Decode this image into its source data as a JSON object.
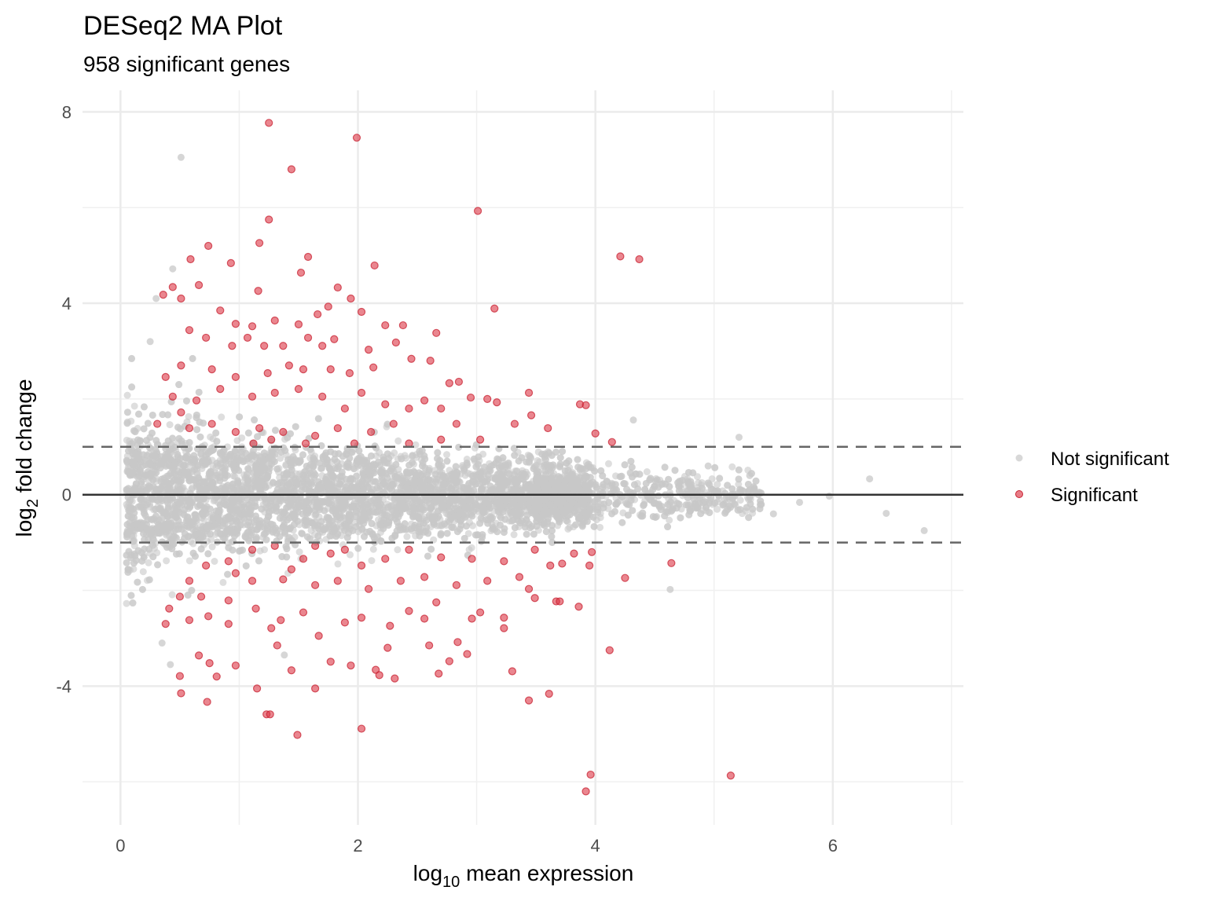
{
  "chart_data": {
    "type": "scatter",
    "title": "DESeq2 MA Plot",
    "subtitle": "958 significant genes",
    "xlabel": {
      "base": "log",
      "sub": "10",
      "rest": " mean expression"
    },
    "ylabel": {
      "base": "log",
      "sub": "2",
      "rest": " fold change"
    },
    "xlim": [
      -0.32,
      7.1
    ],
    "ylim": [
      -6.9,
      8.45
    ],
    "x_ticks": [
      0,
      2,
      4,
      6
    ],
    "x_minor": [
      1,
      3,
      5,
      7
    ],
    "y_ticks": [
      -4,
      0,
      4,
      8
    ],
    "y_minor": [
      -6,
      -2,
      2,
      6
    ],
    "x_tick_labels": [
      "0",
      "2",
      "4",
      "6"
    ],
    "y_tick_labels": [
      "-4",
      "0",
      "4",
      "8"
    ],
    "grid": true,
    "reference_lines": {
      "solid": [
        0
      ],
      "dashed": [
        -1,
        1
      ]
    },
    "legend": {
      "position": "right",
      "entries": [
        "Not significant",
        "Significant"
      ]
    },
    "colors": {
      "not_significant": "#c8c8c8",
      "significant": "#dc3545",
      "ref_line": "#333333",
      "dashed_line": "#666666",
      "grid": "#ebebeb"
    },
    "background_cloud": {
      "series": "Not significant",
      "n": 6500,
      "x_range": [
        0.05,
        5.4
      ],
      "sd_low_x": 0.95,
      "sd_high_x": 0.22,
      "seed": 42
    },
    "series": [
      {
        "name": "Not significant",
        "points": [
          [
            0.51,
            7.05
          ],
          [
            6.31,
            0.33
          ],
          [
            6.45,
            -0.39
          ],
          [
            6.77,
            -0.75
          ],
          [
            4.63,
            -1.98
          ],
          [
            5.97,
            -0.03
          ],
          [
            5.72,
            -0.16
          ],
          [
            5.21,
            1.2
          ],
          [
            4.32,
            1.56
          ],
          [
            0.44,
            4.72
          ],
          [
            0.3,
            4.1
          ],
          [
            0.35,
            -3.1
          ],
          [
            0.42,
            -3.55
          ],
          [
            1.38,
            -3.35
          ],
          [
            0.25,
            3.2
          ],
          [
            5.5,
            -0.4
          ],
          [
            5.3,
            0.4
          ],
          [
            4.95,
            0.6
          ],
          [
            5.1,
            -0.35
          ]
        ]
      },
      {
        "name": "Significant",
        "points": [
          [
            1.25,
            7.77
          ],
          [
            1.99,
            7.46
          ],
          [
            1.44,
            6.8
          ],
          [
            3.01,
            5.93
          ],
          [
            1.25,
            5.75
          ],
          [
            1.17,
            5.26
          ],
          [
            0.74,
            5.2
          ],
          [
            1.58,
            4.97
          ],
          [
            4.21,
            4.98
          ],
          [
            4.37,
            4.92
          ],
          [
            0.59,
            4.92
          ],
          [
            0.93,
            4.84
          ],
          [
            2.14,
            4.79
          ],
          [
            1.52,
            4.64
          ],
          [
            1.83,
            4.33
          ],
          [
            1.94,
            4.1
          ],
          [
            3.15,
            3.89
          ],
          [
            1.16,
            4.26
          ],
          [
            0.44,
            4.34
          ],
          [
            0.66,
            4.38
          ],
          [
            1.75,
            3.93
          ],
          [
            1.66,
            3.77
          ],
          [
            2.03,
            3.82
          ],
          [
            2.23,
            3.54
          ],
          [
            2.38,
            3.54
          ],
          [
            2.66,
            3.38
          ],
          [
            2.32,
            3.18
          ],
          [
            2.09,
            3.03
          ],
          [
            2.45,
            2.84
          ],
          [
            2.61,
            2.8
          ],
          [
            2.13,
            2.66
          ],
          [
            2.77,
            2.33
          ],
          [
            2.85,
            2.36
          ],
          [
            2.95,
            2.03
          ],
          [
            3.09,
            2.0
          ],
          [
            3.17,
            1.93
          ],
          [
            3.44,
            2.13
          ],
          [
            3.46,
            1.66
          ],
          [
            3.6,
            1.39
          ],
          [
            3.87,
            1.89
          ],
          [
            3.92,
            1.87
          ],
          [
            4.0,
            1.28
          ],
          [
            4.14,
            1.1
          ],
          [
            3.32,
            1.48
          ],
          [
            1.5,
            3.56
          ],
          [
            1.3,
            3.64
          ],
          [
            1.11,
            3.52
          ],
          [
            0.97,
            3.57
          ],
          [
            0.84,
            3.85
          ],
          [
            0.51,
            4.1
          ],
          [
            0.36,
            4.18
          ],
          [
            0.58,
            3.44
          ],
          [
            0.72,
            3.28
          ],
          [
            0.94,
            3.11
          ],
          [
            1.07,
            3.28
          ],
          [
            1.21,
            3.11
          ],
          [
            1.37,
            3.11
          ],
          [
            1.58,
            3.28
          ],
          [
            1.7,
            3.11
          ],
          [
            1.8,
            3.25
          ],
          [
            1.42,
            2.7
          ],
          [
            1.54,
            2.62
          ],
          [
            1.77,
            2.62
          ],
          [
            1.93,
            2.54
          ],
          [
            1.24,
            2.54
          ],
          [
            0.97,
            2.46
          ],
          [
            0.77,
            2.62
          ],
          [
            0.51,
            2.7
          ],
          [
            0.38,
            2.46
          ],
          [
            0.44,
            2.05
          ],
          [
            0.64,
            1.97
          ],
          [
            0.84,
            2.21
          ],
          [
            1.11,
            2.05
          ],
          [
            1.3,
            2.13
          ],
          [
            1.5,
            2.21
          ],
          [
            1.7,
            2.05
          ],
          [
            1.89,
            1.8
          ],
          [
            2.03,
            2.13
          ],
          [
            2.23,
            1.89
          ],
          [
            2.43,
            1.8
          ],
          [
            2.56,
            1.97
          ],
          [
            2.7,
            1.8
          ],
          [
            2.3,
            1.48
          ],
          [
            2.11,
            1.31
          ],
          [
            1.83,
            1.39
          ],
          [
            1.64,
            1.23
          ],
          [
            1.37,
            1.31
          ],
          [
            1.17,
            1.39
          ],
          [
            0.97,
            1.31
          ],
          [
            0.77,
            1.48
          ],
          [
            0.58,
            1.39
          ],
          [
            1.27,
            1.15
          ],
          [
            1.56,
            1.07
          ],
          [
            1.97,
            1.07
          ],
          [
            2.43,
            1.07
          ],
          [
            2.7,
            1.15
          ],
          [
            3.03,
            1.15
          ],
          [
            2.83,
            1.48
          ],
          [
            1.12,
            1.07
          ],
          [
            0.51,
            1.72
          ],
          [
            0.31,
            1.48
          ],
          [
            3.96,
            -5.85
          ],
          [
            3.92,
            -6.2
          ],
          [
            5.14,
            -5.87
          ],
          [
            2.03,
            -4.89
          ],
          [
            1.49,
            -5.02
          ],
          [
            1.23,
            -4.59
          ],
          [
            1.26,
            -4.59
          ],
          [
            0.51,
            -4.15
          ],
          [
            0.73,
            -4.33
          ],
          [
            1.15,
            -4.05
          ],
          [
            1.64,
            -4.05
          ],
          [
            3.44,
            -4.3
          ],
          [
            3.61,
            -4.16
          ],
          [
            3.3,
            -3.69
          ],
          [
            4.12,
            -3.25
          ],
          [
            2.68,
            -3.74
          ],
          [
            2.31,
            -3.84
          ],
          [
            2.15,
            -3.66
          ],
          [
            2.18,
            -3.77
          ],
          [
            1.44,
            -3.67
          ],
          [
            1.77,
            -3.49
          ],
          [
            1.94,
            -3.57
          ],
          [
            0.97,
            -3.57
          ],
          [
            0.75,
            -3.52
          ],
          [
            0.81,
            -3.8
          ],
          [
            0.5,
            -3.79
          ],
          [
            0.66,
            -3.36
          ],
          [
            1.32,
            -3.15
          ],
          [
            2.25,
            -3.2
          ],
          [
            2.6,
            -3.15
          ],
          [
            2.77,
            -3.48
          ],
          [
            2.84,
            -3.08
          ],
          [
            2.92,
            -3.33
          ],
          [
            3.86,
            -2.34
          ],
          [
            4.64,
            -1.43
          ],
          [
            4.25,
            -1.74
          ],
          [
            3.67,
            -2.23
          ],
          [
            3.7,
            -2.23
          ],
          [
            3.44,
            -1.97
          ],
          [
            3.49,
            -2.16
          ],
          [
            3.23,
            -2.79
          ],
          [
            3.23,
            -2.57
          ],
          [
            2.96,
            -2.59
          ],
          [
            3.03,
            -2.46
          ],
          [
            2.66,
            -2.25
          ],
          [
            2.56,
            -2.59
          ],
          [
            2.43,
            -2.43
          ],
          [
            2.27,
            -2.74
          ],
          [
            2.03,
            -2.57
          ],
          [
            1.89,
            -2.67
          ],
          [
            1.67,
            -2.95
          ],
          [
            1.54,
            -2.46
          ],
          [
            1.35,
            -2.62
          ],
          [
            1.27,
            -2.79
          ],
          [
            1.14,
            -2.38
          ],
          [
            0.91,
            -2.7
          ],
          [
            0.74,
            -2.54
          ],
          [
            0.58,
            -2.62
          ],
          [
            0.41,
            -2.38
          ],
          [
            0.38,
            -2.7
          ],
          [
            0.5,
            -2.13
          ],
          [
            0.68,
            -2.13
          ],
          [
            0.91,
            -2.21
          ],
          [
            1.11,
            -1.8
          ],
          [
            1.37,
            -1.77
          ],
          [
            1.64,
            -1.89
          ],
          [
            1.83,
            -1.8
          ],
          [
            2.09,
            -1.97
          ],
          [
            2.36,
            -1.8
          ],
          [
            2.56,
            -1.72
          ],
          [
            2.83,
            -1.89
          ],
          [
            3.09,
            -1.8
          ],
          [
            3.36,
            -1.72
          ],
          [
            3.62,
            -1.48
          ],
          [
            3.82,
            -1.23
          ],
          [
            3.97,
            -1.2
          ],
          [
            3.95,
            -1.48
          ],
          [
            3.72,
            -1.44
          ],
          [
            3.49,
            -1.15
          ],
          [
            3.23,
            -1.39
          ],
          [
            2.96,
            -1.34
          ],
          [
            2.7,
            -1.31
          ],
          [
            2.43,
            -1.15
          ],
          [
            2.23,
            -1.34
          ],
          [
            2.03,
            -1.48
          ],
          [
            1.77,
            -1.23
          ],
          [
            1.54,
            -1.34
          ],
          [
            1.3,
            -1.07
          ],
          [
            1.11,
            -1.15
          ],
          [
            0.91,
            -1.39
          ],
          [
            0.72,
            -1.48
          ],
          [
            0.58,
            -1.8
          ],
          [
            1.89,
            -1.15
          ],
          [
            1.64,
            -1.07
          ],
          [
            1.44,
            -1.56
          ],
          [
            0.97,
            -1.64
          ]
        ]
      }
    ]
  }
}
